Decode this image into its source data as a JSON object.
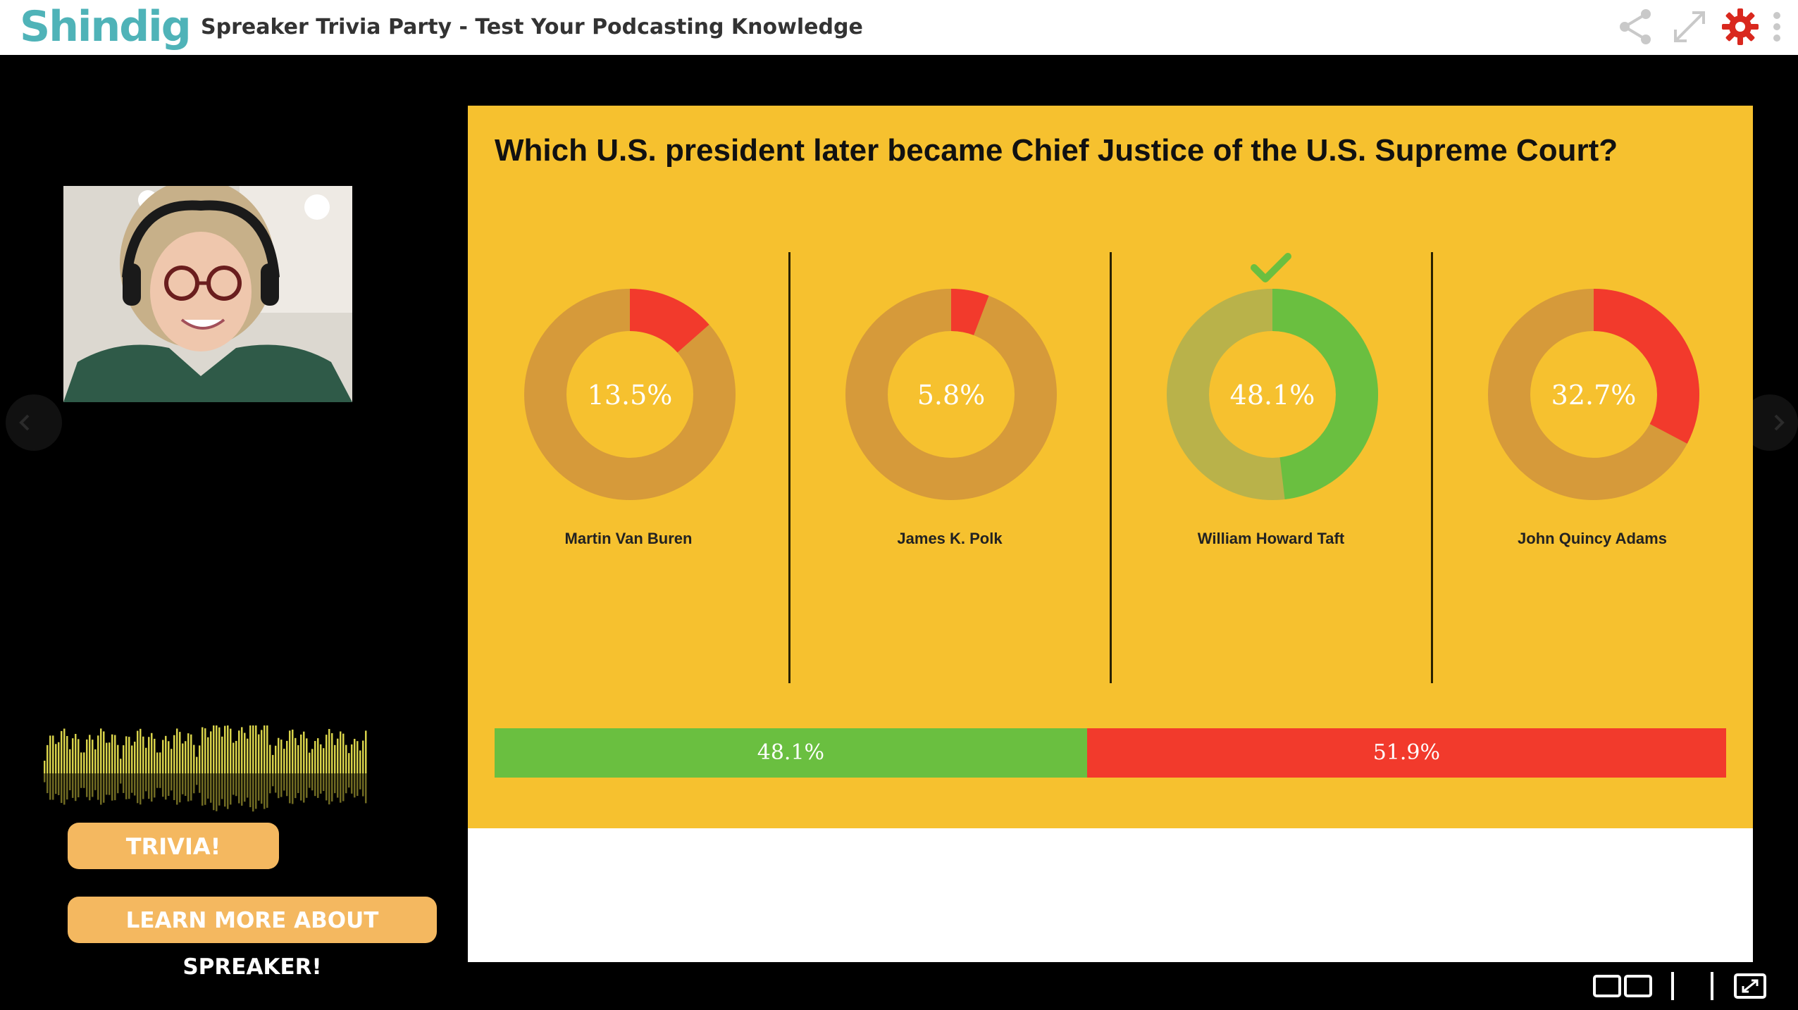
{
  "app": {
    "logo": "Shindig",
    "title": "Spreaker Trivia Party - Test Your Podcasting Knowledge"
  },
  "toolbar": {
    "icons": [
      "share-icon",
      "fullscreen-icon",
      "settings-icon",
      "more-vertical-icon"
    ],
    "accent_color": "#d9281e"
  },
  "sidebar": {
    "buttons": {
      "trivia_label": "TRIVIA!",
      "learn_more_label": "LEARN MORE ABOUT SPREAKER!"
    },
    "button_color": "#f4b860"
  },
  "poll": {
    "question": "Which U.S. president later became Chief Justice of the U.S. Supreme Court?",
    "answers": [
      {
        "label": "Martin Van Buren",
        "percent": 13.5,
        "percent_text": "13.5%",
        "correct": false
      },
      {
        "label": "James K. Polk",
        "percent": 5.8,
        "percent_text": "5.8%",
        "correct": false
      },
      {
        "label": "William Howard Taft",
        "percent": 48.1,
        "percent_text": "48.1%",
        "correct": true
      },
      {
        "label": "John Quincy Adams",
        "percent": 32.7,
        "percent_text": "32.7%",
        "correct": false
      }
    ],
    "summary": {
      "correct_percent": 48.1,
      "correct_text": "48.1%",
      "incorrect_percent": 51.9,
      "incorrect_text": "51.9%"
    },
    "colors": {
      "background": "#f6c12f",
      "ring": "#d69a3a",
      "ring_correct": "#b9b24a",
      "incorrect": "#f23a2c",
      "correct": "#6abf40"
    }
  }
}
